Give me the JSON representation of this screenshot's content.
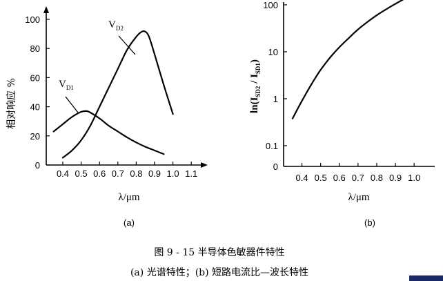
{
  "chart_data": [
    {
      "type": "line",
      "panel_label": "(a)",
      "ylabel": "相对响应 %",
      "xlabel": "λ/μm",
      "xlim": [
        0.3,
        1.15
      ],
      "ylim": [
        0,
        110
      ],
      "x_ticks": [
        "0.4",
        "0.5",
        "0.6",
        "0.7",
        "0.8",
        "0.9",
        "1.0",
        "1.1"
      ],
      "y_ticks": [
        "0",
        "20",
        "40",
        "60",
        "80",
        "100"
      ],
      "series": [
        {
          "name": "VD1",
          "label_main": "V",
          "label_sub": "D1",
          "x": [
            0.35,
            0.4,
            0.45,
            0.5,
            0.53,
            0.55,
            0.6,
            0.65,
            0.7,
            0.75,
            0.8,
            0.85,
            0.9,
            0.95
          ],
          "y": [
            23,
            28,
            33,
            36.5,
            37,
            36,
            32,
            27,
            23,
            19,
            15.5,
            12.5,
            10,
            7.5
          ]
        },
        {
          "name": "VD2",
          "label_main": "V",
          "label_sub": "D2",
          "x": [
            0.4,
            0.45,
            0.5,
            0.55,
            0.6,
            0.65,
            0.7,
            0.75,
            0.8,
            0.83,
            0.85,
            0.87,
            0.9,
            0.95,
            1.0
          ],
          "y": [
            5,
            10,
            17,
            27,
            40,
            53,
            66,
            79,
            88,
            91.5,
            91.5,
            88,
            76,
            55,
            35
          ]
        }
      ]
    },
    {
      "type": "line",
      "panel_label": "(b)",
      "ylabel_main": "ln(I",
      "ylabel_sub1": "SD2",
      "ylabel_mid": " / I",
      "ylabel_sub2": "SD1",
      "ylabel_end": ")",
      "xlabel": "λ/μm",
      "yscale": "log",
      "xlim": [
        0.3,
        1.05
      ],
      "y_ticks": [
        "0",
        "0.1",
        "1",
        "10",
        "100"
      ],
      "x_ticks": [
        "0.4",
        "0.5",
        "0.6",
        "0.7",
        "0.8",
        "0.9",
        "1.0"
      ],
      "series": [
        {
          "name": "",
          "x": [
            0.35,
            0.4,
            0.45,
            0.5,
            0.55,
            0.6,
            0.65,
            0.7,
            0.75,
            0.8,
            0.85,
            0.9,
            0.95,
            1.0
          ],
          "y": [
            0.38,
            0.9,
            2.0,
            4.1,
            7.5,
            12.5,
            19.5,
            30,
            43,
            60,
            80,
            105,
            135,
            165
          ]
        }
      ]
    }
  ],
  "caption": {
    "line1": "图 9 - 15   半导体色敏器件特性",
    "line2": "(a) 光谱特性；(b) 短路电流比—波长特性"
  }
}
